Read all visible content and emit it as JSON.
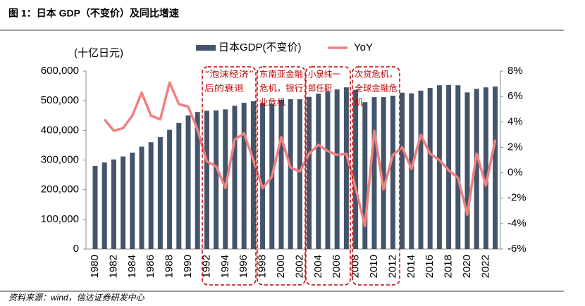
{
  "header": {
    "title": "图 1：日本 GDP（不变价）及同比增速"
  },
  "footer": {
    "source": "资料来源：wind，信达证券研发中心"
  },
  "chart_data": {
    "type": "bar",
    "y_label": "(十亿日元)",
    "categories": [
      "1980",
      null,
      "1982",
      null,
      "1984",
      null,
      "1986",
      null,
      "1988",
      null,
      "1990",
      null,
      "1992",
      null,
      "1994",
      null,
      "1996",
      null,
      "1998",
      null,
      "2000",
      null,
      "2002",
      null,
      "2004",
      null,
      "2006",
      null,
      "2008",
      null,
      "2010",
      null,
      "2012",
      null,
      "2014",
      null,
      "2016",
      null,
      "2018",
      null,
      "2020",
      null,
      "2022",
      null
    ],
    "series": [
      {
        "name": "日本GDP(不变价)",
        "type": "bar",
        "color": "#44546a",
        "values": [
          280000,
          292000,
          302000,
          312000,
          325000,
          345000,
          360000,
          377000,
          402000,
          425000,
          450000,
          462000,
          466000,
          467000,
          471000,
          483000,
          493000,
          498000,
          492000,
          490000,
          503000,
          505000,
          505000,
          513000,
          524000,
          532000,
          538000,
          545000,
          537000,
          495000,
          512000,
          512000,
          517000,
          527000,
          525000,
          534000,
          543000,
          552000,
          553000,
          552000,
          528000,
          540000,
          545000,
          548000
        ]
      },
      {
        "name": "YoY",
        "type": "line",
        "axis": "y2",
        "color": "#f08080",
        "values": [
          null,
          4.2,
          3.3,
          3.5,
          4.5,
          6.3,
          4.5,
          4.2,
          7.1,
          5.4,
          5.2,
          3.4,
          0.9,
          0.5,
          -1.2,
          2.6,
          3.1,
          1.0,
          -1.2,
          -0.3,
          2.8,
          0.4,
          0.1,
          1.5,
          2.2,
          1.7,
          1.4,
          1.5,
          -1.2,
          -4.2,
          3.3,
          -1.3,
          1.4,
          2.0,
          0.3,
          3.0,
          1.5,
          1.0,
          0.2,
          -0.4,
          -3.3,
          1.5,
          -1.0,
          2.6
        ]
      }
    ],
    "ylim": [
      0,
      600000
    ],
    "yticks": [
      0,
      {
        "value": 100000,
        "label": "100,000"
      },
      {
        "value": 200000,
        "label": "200,000"
      },
      {
        "value": 300000,
        "label": "300,000"
      },
      {
        "value": 400000,
        "label": "400,000"
      },
      {
        "value": 500000,
        "label": "500,000"
      },
      {
        "value": 600000,
        "label": "600,000"
      }
    ],
    "y2lim": [
      -6,
      8
    ],
    "y2ticks": [
      {
        "value": -6,
        "label": "-6%"
      },
      {
        "value": -4,
        "label": "-4%"
      },
      {
        "value": -2,
        "label": "-2%"
      },
      {
        "value": 0,
        "label": "0%"
      },
      {
        "value": 2,
        "label": "2%"
      },
      {
        "value": 4,
        "label": "4%"
      },
      {
        "value": 6,
        "label": "6%"
      },
      {
        "value": 8,
        "label": "8%"
      }
    ],
    "annotations": [
      {
        "lines": [
          "“泡沫经济”",
          "后的衰退"
        ]
      },
      {
        "lines": [
          "东南亚金融",
          "危机，银行",
          "业危机"
        ]
      },
      {
        "lines": [
          "小泉纯一",
          "郎任职"
        ]
      },
      {
        "lines": [
          "次贷危机，",
          "全球金融危",
          "机"
        ]
      }
    ],
    "legend": "top"
  }
}
